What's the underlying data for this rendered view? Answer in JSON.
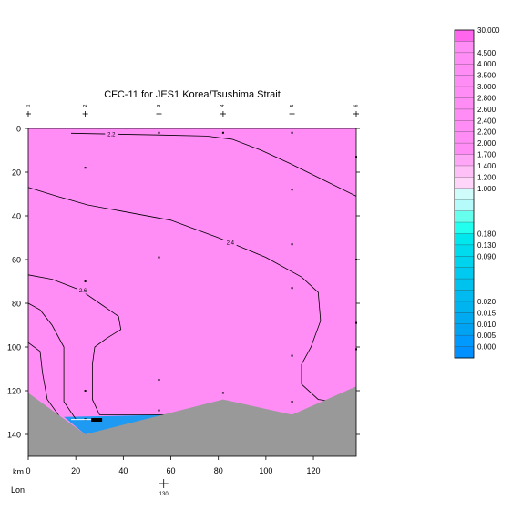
{
  "chart_data": {
    "type": "section-contour",
    "title": "CFC-11 for JES1 Korea/Tsushima Strait",
    "xlabel": "km",
    "lon_label": "Lon",
    "lon_tick": {
      "km": 57,
      "label": "130"
    },
    "xlim": [
      0,
      138
    ],
    "ylim": [
      0,
      150
    ],
    "x_ticks": [
      0,
      20,
      40,
      60,
      80,
      100,
      120
    ],
    "y_ticks": [
      0,
      20,
      40,
      60,
      80,
      100,
      120,
      140
    ],
    "stations": [
      {
        "label": "1",
        "km": 0
      },
      {
        "label": "2",
        "km": 24
      },
      {
        "label": "3",
        "km": 55
      },
      {
        "label": "4",
        "km": 82
      },
      {
        "label": "5",
        "km": 111
      },
      {
        "label": "6",
        "km": 138
      }
    ],
    "samples": [
      {
        "km": 24,
        "depth": 18
      },
      {
        "km": 24,
        "depth": 70
      },
      {
        "km": 24,
        "depth": 120
      },
      {
        "km": 24,
        "depth": 133
      },
      {
        "km": 55,
        "depth": 2
      },
      {
        "km": 55,
        "depth": 59
      },
      {
        "km": 55,
        "depth": 115
      },
      {
        "km": 55,
        "depth": 129
      },
      {
        "km": 82,
        "depth": 2
      },
      {
        "km": 82,
        "depth": 121
      },
      {
        "km": 111,
        "depth": 2
      },
      {
        "km": 111,
        "depth": 28
      },
      {
        "km": 111,
        "depth": 53
      },
      {
        "km": 111,
        "depth": 73
      },
      {
        "km": 111,
        "depth": 104
      },
      {
        "km": 111,
        "depth": 125
      },
      {
        "km": 138,
        "depth": 13
      },
      {
        "km": 138,
        "depth": 60
      },
      {
        "km": 138,
        "depth": 89
      },
      {
        "km": 138,
        "depth": 101
      }
    ],
    "contours": [
      {
        "label": "2.2",
        "label_at": [
          35,
          2.5
        ],
        "points": [
          [
            18,
            2.2
          ],
          [
            35,
            2.6
          ],
          [
            55,
            3
          ],
          [
            75,
            3.5
          ],
          [
            86,
            5
          ],
          [
            98,
            10
          ],
          [
            110,
            16
          ],
          [
            125,
            24
          ],
          [
            138,
            31
          ]
        ]
      },
      {
        "label": "2.4",
        "label_at": [
          85,
          52
        ],
        "points": [
          [
            0,
            27
          ],
          [
            12,
            31
          ],
          [
            25,
            35
          ],
          [
            40,
            38
          ],
          [
            60,
            42
          ],
          [
            80,
            50
          ],
          [
            100,
            59
          ],
          [
            115,
            68
          ],
          [
            122,
            75
          ],
          [
            123,
            88
          ],
          [
            119,
            100
          ],
          [
            115,
            108
          ],
          [
            115,
            117
          ],
          [
            122,
            124
          ],
          [
            129,
            125
          ]
        ]
      },
      {
        "label": "2.6",
        "label_at": [
          23,
          74
        ],
        "points": [
          [
            0,
            67
          ],
          [
            10,
            69
          ],
          [
            22,
            74
          ],
          [
            30,
            80
          ],
          [
            38,
            86
          ],
          [
            39,
            92
          ],
          [
            33,
            96
          ],
          [
            28,
            100
          ],
          [
            27,
            108
          ],
          [
            27,
            116
          ],
          [
            27,
            124
          ],
          [
            30,
            131
          ],
          [
            60,
            131
          ]
        ]
      },
      {
        "label": "",
        "label_at": null,
        "points": [
          [
            0,
            80
          ],
          [
            5,
            83
          ],
          [
            10,
            90
          ],
          [
            15,
            100
          ],
          [
            15,
            112
          ],
          [
            15,
            125
          ],
          [
            20,
            133
          ]
        ]
      },
      {
        "label": "",
        "label_at": null,
        "points": [
          [
            0,
            98
          ],
          [
            5,
            102
          ],
          [
            6,
            112
          ],
          [
            8,
            124
          ],
          [
            14,
            133
          ]
        ]
      }
    ],
    "colorbar": {
      "top_label": "30.000",
      "labels": [
        "4.500",
        "4.000",
        "3.500",
        "3.000",
        "2.800",
        "2.600",
        "2.400",
        "2.200",
        "2.000",
        "1.700",
        "1.400",
        "1.200",
        "1.000",
        "",
        "",
        "",
        "0.180",
        "0.130",
        "0.090",
        "",
        "",
        "",
        "0.020",
        "0.015",
        "0.010",
        "0.005",
        "0.000"
      ],
      "colors": [
        "#ff66ee",
        "#ff8df5",
        "#ff8df5",
        "#ff8df5",
        "#ff8df5",
        "#ff8df5",
        "#ff8df5",
        "#ff8df5",
        "#ff8df5",
        "#ff8df5",
        "#ff8df5",
        "#ffa6f7",
        "#ffc0f8",
        "#ffd6fa",
        "#cffbfb",
        "#b6fbfb",
        "#66ffee",
        "#22ffee",
        "#00e8ee",
        "#00dcee",
        "#00d3ee",
        "#00caef",
        "#00c2ef",
        "#00baf0",
        "#00b4f0",
        "#00aaf1",
        "#00a3f2",
        "#009aff",
        "#0090ff"
      ]
    },
    "colors": {
      "field": "#ff8df5",
      "low_region": "#1f9af2",
      "bathymetry": "#999999",
      "line": "#000000"
    },
    "low_region": [
      [
        15,
        132
      ],
      [
        24,
        140
      ],
      [
        55,
        132
      ],
      [
        60,
        131
      ]
    ],
    "bathymetry": [
      [
        0,
        121
      ],
      [
        24,
        140
      ],
      [
        82,
        124
      ],
      [
        111,
        131
      ],
      [
        138,
        118
      ]
    ]
  }
}
